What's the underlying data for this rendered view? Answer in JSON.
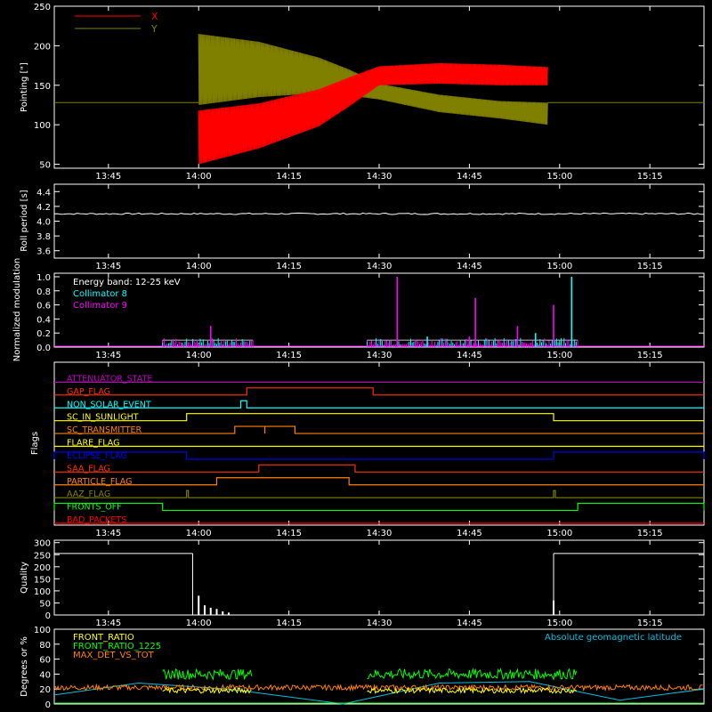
{
  "chart_data": [
    {
      "type": "line",
      "ylabel": "Pointing [\"]",
      "ylim": [
        45,
        250
      ],
      "yticks": [
        50,
        100,
        150,
        200,
        250
      ],
      "xlim": [
        "13:36",
        "15:24"
      ],
      "xticks": [
        "13:45",
        "14:00",
        "14:15",
        "14:30",
        "14:45",
        "15:00",
        "15:15"
      ],
      "legend": "top-left",
      "series": [
        {
          "name": "X",
          "color": "#ff0000",
          "x": [
            "14:00",
            "14:10",
            "14:20",
            "14:25",
            "14:30",
            "14:40",
            "14:50",
            "14:58"
          ],
          "upper": [
            118,
            127,
            145,
            160,
            174,
            178,
            176,
            173
          ],
          "lower": [
            50,
            70,
            98,
            123,
            150,
            152,
            150,
            150
          ]
        },
        {
          "name": "Y",
          "color": "#808000",
          "x": [
            "14:00",
            "14:10",
            "14:20",
            "14:25",
            "14:30",
            "14:40",
            "14:50",
            "14:58"
          ],
          "upper": [
            215,
            205,
            185,
            170,
            152,
            138,
            130,
            128
          ],
          "lower": [
            125,
            135,
            140,
            137,
            132,
            116,
            108,
            100
          ]
        }
      ],
      "baseline": 128
    },
    {
      "type": "line",
      "ylabel": "Roll period [s]",
      "ylim": [
        3.5,
        4.5
      ],
      "yticks": [
        3.6,
        3.8,
        4.0,
        4.2,
        4.4
      ],
      "xlim": [
        "13:36",
        "15:24"
      ],
      "xticks": [
        "13:45",
        "14:00",
        "14:15",
        "14:30",
        "14:45",
        "15:00",
        "15:15"
      ],
      "series": [
        {
          "name": "",
          "color": "#ffffff",
          "value": 4.1
        }
      ]
    },
    {
      "type": "line",
      "ylabel": "Normalized modulation",
      "ylim": [
        0,
        1.05
      ],
      "yticks": [
        0.0,
        0.2,
        0.4,
        0.6,
        0.8,
        1.0
      ],
      "xlim": [
        "13:36",
        "15:24"
      ],
      "xticks": [
        "13:45",
        "14:00",
        "14:15",
        "14:30",
        "14:45",
        "15:00",
        "15:15"
      ],
      "annotation": "Energy band: 12-25 keV",
      "intervals": [
        [
          "13:54",
          "14:09"
        ],
        [
          "14:28",
          "15:03"
        ]
      ],
      "series": [
        {
          "name": "Collimator 8",
          "color": "#00ffff",
          "spikes": [
            [
              "15:02",
              1.0
            ],
            [
              "14:38",
              0.15
            ],
            [
              "14:56",
              0.2
            ]
          ]
        },
        {
          "name": "Collimator 9",
          "color": "#ff00ff",
          "spikes": [
            [
              "14:33",
              1.0
            ],
            [
              "14:46",
              0.7
            ],
            [
              "14:59",
              0.6
            ],
            [
              "14:02",
              0.3
            ],
            [
              "14:53",
              0.3
            ],
            [
              "14:45",
              0.15
            ]
          ]
        }
      ]
    },
    {
      "type": "line",
      "ylabel": "Flags",
      "xlim": [
        "13:36",
        "15:24"
      ],
      "xticks": [
        "13:45",
        "14:00",
        "14:15",
        "14:30",
        "14:45",
        "15:00",
        "15:15"
      ],
      "flags": [
        {
          "name": "ATTENUATOR_STATE",
          "color": "#c000c0",
          "on": []
        },
        {
          "name": "GAP_FLAG",
          "color": "#ff3000",
          "on": [
            [
              "14:08",
              "14:29"
            ]
          ]
        },
        {
          "name": "NON_SOLAR_EVENT",
          "color": "#00ffff",
          "on": [
            [
              "14:07",
              "14:08"
            ]
          ]
        },
        {
          "name": "SC_IN_SUNLIGHT",
          "color": "#ffff00",
          "on": [
            [
              "13:58",
              "14:59"
            ]
          ]
        },
        {
          "name": "SC_TRANSMITTER",
          "color": "#ff8000",
          "on": [
            [
              "14:06",
              "14:11"
            ],
            [
              "14:11",
              "14:16"
            ]
          ]
        },
        {
          "name": "FLARE_FLAG",
          "color": "#ffff00",
          "on": []
        },
        {
          "name": "ECLIPSE_FLAG",
          "color": "#0000ff",
          "on": [
            [
              "13:36",
              "13:58"
            ],
            [
              "14:59",
              "15:24"
            ]
          ]
        },
        {
          "name": "SAA_FLAG",
          "color": "#ff3000",
          "on": [
            [
              "14:10",
              "14:26"
            ]
          ]
        },
        {
          "name": "PARTICLE_FLAG",
          "color": "#ff8000",
          "on": [
            [
              "14:03",
              "14:25"
            ]
          ]
        },
        {
          "name": "AAZ_FLAG",
          "color": "#808000",
          "on": [
            [
              "13:58",
              "13:58"
            ],
            [
              "14:59",
              "14:59"
            ]
          ]
        },
        {
          "name": "FRONTS_OFF",
          "color": "#00ff00",
          "on": [
            [
              "13:36",
              "13:54"
            ],
            [
              "15:03",
              "15:24"
            ]
          ]
        },
        {
          "name": "BAD_PACKETS",
          "color": "#ff0000",
          "on": []
        }
      ]
    },
    {
      "type": "line",
      "ylabel": "Quality",
      "ylim": [
        0,
        310
      ],
      "yticks": [
        0,
        50,
        100,
        150,
        200,
        250,
        300
      ],
      "xlim": [
        "13:36",
        "15:24"
      ],
      "xticks": [
        "13:45",
        "14:00",
        "14:15",
        "14:30",
        "14:45",
        "15:00",
        "15:15"
      ],
      "series": [
        {
          "name": "",
          "color": "#ffffff",
          "segments": [
            [
              [
                "13:36",
                255
              ],
              [
                "13:59",
                255
              ]
            ],
            [
              [
                "14:59",
                255
              ],
              [
                "15:24",
                255
              ]
            ]
          ],
          "spikes": [
            [
              "14:00",
              80
            ],
            [
              "14:01",
              40
            ],
            [
              "14:02",
              30
            ],
            [
              "14:03",
              25
            ],
            [
              "14:04",
              15
            ],
            [
              "14:05",
              10
            ],
            [
              "14:59",
              60
            ]
          ]
        }
      ]
    },
    {
      "type": "line",
      "ylabel": "Degrees or %",
      "ylim": [
        0,
        100
      ],
      "yticks": [
        0,
        20,
        40,
        60,
        80,
        100
      ],
      "xlim": [
        "13:36",
        "15:24"
      ],
      "xticks": [
        "13:45",
        "14:00",
        "14:15",
        "14:30",
        "14:45",
        "15:00",
        "15:15"
      ],
      "series": [
        {
          "name": "FRONT_RATIO",
          "color": "#ffff00",
          "level": 18,
          "interval": [
            [
              "13:54",
              "14:09"
            ],
            [
              "14:28",
              "15:03"
            ]
          ]
        },
        {
          "name": "FRONT_RATIO_1225",
          "color": "#00ff00",
          "level": 40,
          "interval": [
            [
              "13:54",
              "14:09"
            ],
            [
              "14:28",
              "15:03"
            ]
          ]
        },
        {
          "name": "MAX_DET_VS_TOT",
          "color": "#ff8000",
          "level": 22,
          "interval": [
            [
              "13:36",
              "15:24"
            ]
          ]
        },
        {
          "name": "Absolute geomagnetic latitude",
          "color": "#00c0e0",
          "x": [
            "13:36",
            "13:50",
            "14:05",
            "14:24",
            "14:40",
            "14:55",
            "15:10",
            "15:24"
          ],
          "values": [
            12,
            28,
            20,
            0,
            28,
            30,
            5,
            20
          ]
        }
      ]
    }
  ]
}
